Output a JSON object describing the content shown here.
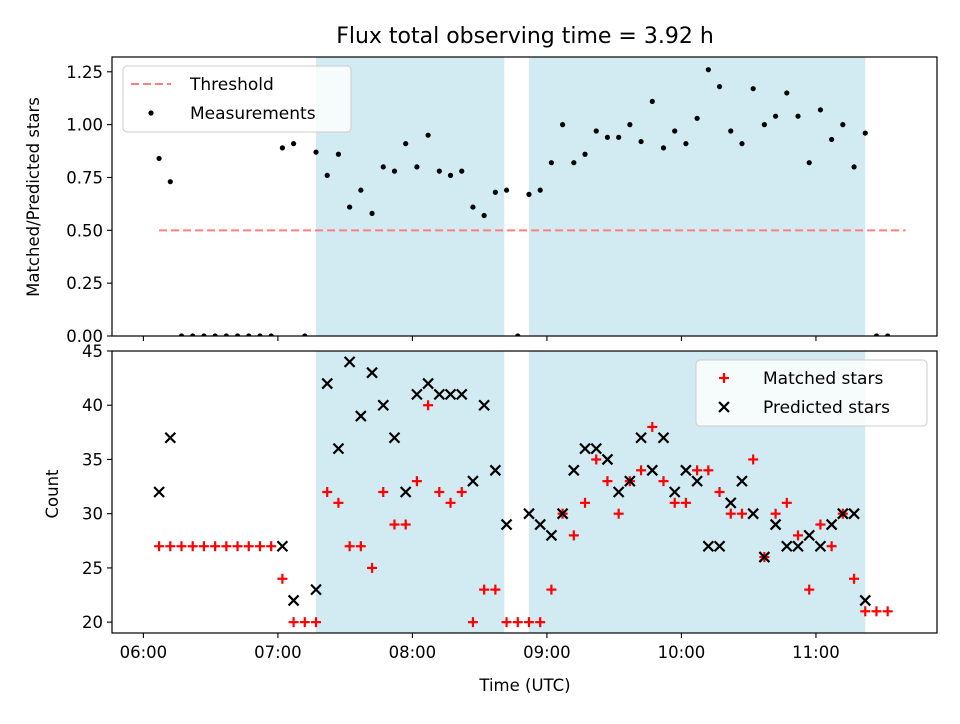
{
  "figure": {
    "title": "Flux total observing time = 3.92 h"
  },
  "chart_data": [
    {
      "type": "scatter",
      "xlabel": "",
      "ylabel": "Matched/Predicted stars",
      "ylim": [
        0,
        1.32
      ],
      "xlim": [
        "05:46",
        "11:54"
      ],
      "yticks": [
        0,
        0.25,
        0.5,
        0.75,
        1.0,
        1.25
      ],
      "ytick_labels": [
        "0.00",
        "0.25",
        "0.50",
        "0.75",
        "1.00",
        "1.25"
      ],
      "shaded_spans": [
        [
          "07:17",
          "08:41"
        ],
        [
          "08:52",
          "11:22"
        ]
      ],
      "shade_color": "#add8e6",
      "legend_position": "top-left",
      "legend": [
        {
          "label": "Threshold",
          "style": "dashed-line",
          "color": "#ff7f7f"
        },
        {
          "label": "Measurements",
          "style": "dot",
          "color": "#000000"
        }
      ],
      "threshold": {
        "value": 0.5,
        "x_range": [
          "06:07",
          "11:40"
        ]
      },
      "series": [
        {
          "name": "Measurements",
          "points": [
            [
              "06:07",
              0.84
            ],
            [
              "06:12",
              0.73
            ],
            [
              "06:17",
              0.0
            ],
            [
              "06:22",
              0.0
            ],
            [
              "06:27",
              0.0
            ],
            [
              "06:32",
              0.0
            ],
            [
              "06:37",
              0.0
            ],
            [
              "06:42",
              0.0
            ],
            [
              "06:47",
              0.0
            ],
            [
              "06:52",
              0.0
            ],
            [
              "06:57",
              0.0
            ],
            [
              "07:02",
              0.89
            ],
            [
              "07:07",
              0.91
            ],
            [
              "07:12",
              0.0
            ],
            [
              "07:17",
              0.87
            ],
            [
              "07:22",
              0.76
            ],
            [
              "07:27",
              0.86
            ],
            [
              "07:32",
              0.61
            ],
            [
              "07:37",
              0.69
            ],
            [
              "07:42",
              0.58
            ],
            [
              "07:47",
              0.8
            ],
            [
              "07:52",
              0.78
            ],
            [
              "07:57",
              0.91
            ],
            [
              "08:02",
              0.8
            ],
            [
              "08:07",
              0.95
            ],
            [
              "08:12",
              0.78
            ],
            [
              "08:17",
              0.76
            ],
            [
              "08:22",
              0.78
            ],
            [
              "08:27",
              0.61
            ],
            [
              "08:32",
              0.57
            ],
            [
              "08:37",
              0.68
            ],
            [
              "08:42",
              0.69
            ],
            [
              "08:47",
              0.0
            ],
            [
              "08:52",
              0.67
            ],
            [
              "08:57",
              0.69
            ],
            [
              "09:02",
              0.82
            ],
            [
              "09:07",
              1.0
            ],
            [
              "09:12",
              0.82
            ],
            [
              "09:17",
              0.86
            ],
            [
              "09:22",
              0.97
            ],
            [
              "09:27",
              0.94
            ],
            [
              "09:32",
              0.94
            ],
            [
              "09:37",
              1.0
            ],
            [
              "09:42",
              0.92
            ],
            [
              "09:47",
              1.11
            ],
            [
              "09:52",
              0.89
            ],
            [
              "09:57",
              0.97
            ],
            [
              "10:02",
              0.91
            ],
            [
              "10:07",
              1.03
            ],
            [
              "10:12",
              1.26
            ],
            [
              "10:17",
              1.18
            ],
            [
              "10:22",
              0.97
            ],
            [
              "10:27",
              0.91
            ],
            [
              "10:32",
              1.17
            ],
            [
              "10:37",
              1.0
            ],
            [
              "10:42",
              1.04
            ],
            [
              "10:47",
              1.15
            ],
            [
              "10:52",
              1.04
            ],
            [
              "10:57",
              0.82
            ],
            [
              "11:02",
              1.07
            ],
            [
              "11:07",
              0.93
            ],
            [
              "11:12",
              1.0
            ],
            [
              "11:17",
              0.8
            ],
            [
              "11:22",
              0.96
            ],
            [
              "11:27",
              0.0
            ],
            [
              "11:32",
              0.0
            ]
          ]
        }
      ]
    },
    {
      "type": "scatter",
      "xlabel": "Time (UTC)",
      "ylabel": "Count",
      "ylim": [
        19,
        45
      ],
      "xlim": [
        "05:46",
        "11:54"
      ],
      "yticks": [
        20,
        25,
        30,
        35,
        40,
        45
      ],
      "ytick_labels": [
        "20",
        "25",
        "30",
        "35",
        "40",
        "45"
      ],
      "xticks": [
        "06:00",
        "07:00",
        "08:00",
        "09:00",
        "10:00",
        "11:00"
      ],
      "xtick_labels": [
        "06:00",
        "07:00",
        "08:00",
        "09:00",
        "10:00",
        "11:00"
      ],
      "shaded_spans": [
        [
          "07:17",
          "08:41"
        ],
        [
          "08:52",
          "11:22"
        ]
      ],
      "shade_color": "#add8e6",
      "legend_position": "top-right",
      "legend": [
        {
          "label": "Matched stars",
          "style": "plus",
          "color": "#ff0000"
        },
        {
          "label": "Predicted stars",
          "style": "x",
          "color": "#000000"
        }
      ],
      "series": [
        {
          "name": "Matched stars",
          "points": [
            [
              "06:07",
              27
            ],
            [
              "06:12",
              27
            ],
            [
              "06:17",
              27
            ],
            [
              "06:22",
              27
            ],
            [
              "06:27",
              27
            ],
            [
              "06:32",
              27
            ],
            [
              "06:37",
              27
            ],
            [
              "06:42",
              27
            ],
            [
              "06:47",
              27
            ],
            [
              "06:52",
              27
            ],
            [
              "06:57",
              27
            ],
            [
              "07:02",
              24
            ],
            [
              "07:07",
              20
            ],
            [
              "07:12",
              20
            ],
            [
              "07:17",
              20
            ],
            [
              "07:22",
              32
            ],
            [
              "07:27",
              31
            ],
            [
              "07:32",
              27
            ],
            [
              "07:37",
              27
            ],
            [
              "07:42",
              25
            ],
            [
              "07:47",
              32
            ],
            [
              "07:52",
              29
            ],
            [
              "07:57",
              29
            ],
            [
              "08:02",
              33
            ],
            [
              "08:07",
              40
            ],
            [
              "08:12",
              32
            ],
            [
              "08:17",
              31
            ],
            [
              "08:22",
              32
            ],
            [
              "08:27",
              20
            ],
            [
              "08:32",
              23
            ],
            [
              "08:37",
              23
            ],
            [
              "08:42",
              20
            ],
            [
              "08:47",
              20
            ],
            [
              "08:52",
              20
            ],
            [
              "08:57",
              20
            ],
            [
              "09:02",
              23
            ],
            [
              "09:07",
              30
            ],
            [
              "09:12",
              28
            ],
            [
              "09:17",
              31
            ],
            [
              "09:22",
              35
            ],
            [
              "09:27",
              33
            ],
            [
              "09:32",
              30
            ],
            [
              "09:37",
              33
            ],
            [
              "09:42",
              34
            ],
            [
              "09:47",
              38
            ],
            [
              "09:52",
              33
            ],
            [
              "09:57",
              31
            ],
            [
              "10:02",
              31
            ],
            [
              "10:07",
              34
            ],
            [
              "10:12",
              34
            ],
            [
              "10:17",
              32
            ],
            [
              "10:22",
              30
            ],
            [
              "10:27",
              30
            ],
            [
              "10:32",
              35
            ],
            [
              "10:37",
              26
            ],
            [
              "10:42",
              30
            ],
            [
              "10:47",
              31
            ],
            [
              "10:52",
              28
            ],
            [
              "10:57",
              23
            ],
            [
              "11:02",
              29
            ],
            [
              "11:07",
              27
            ],
            [
              "11:12",
              30
            ],
            [
              "11:17",
              24
            ],
            [
              "11:22",
              21
            ],
            [
              "11:27",
              21
            ],
            [
              "11:32",
              21
            ]
          ]
        },
        {
          "name": "Predicted stars",
          "points": [
            [
              "06:07",
              32
            ],
            [
              "06:12",
              37
            ],
            [
              "07:02",
              27
            ],
            [
              "07:07",
              22
            ],
            [
              "07:17",
              23
            ],
            [
              "07:22",
              42
            ],
            [
              "07:27",
              36
            ],
            [
              "07:32",
              44
            ],
            [
              "07:37",
              39
            ],
            [
              "07:42",
              43
            ],
            [
              "07:47",
              40
            ],
            [
              "07:52",
              37
            ],
            [
              "07:57",
              32
            ],
            [
              "08:02",
              41
            ],
            [
              "08:07",
              42
            ],
            [
              "08:12",
              41
            ],
            [
              "08:17",
              41
            ],
            [
              "08:22",
              41
            ],
            [
              "08:27",
              33
            ],
            [
              "08:32",
              40
            ],
            [
              "08:37",
              34
            ],
            [
              "08:42",
              29
            ],
            [
              "08:52",
              30
            ],
            [
              "08:57",
              29
            ],
            [
              "09:02",
              28
            ],
            [
              "09:07",
              30
            ],
            [
              "09:12",
              34
            ],
            [
              "09:17",
              36
            ],
            [
              "09:22",
              36
            ],
            [
              "09:27",
              35
            ],
            [
              "09:32",
              32
            ],
            [
              "09:37",
              33
            ],
            [
              "09:42",
              37
            ],
            [
              "09:47",
              34
            ],
            [
              "09:52",
              37
            ],
            [
              "09:57",
              32
            ],
            [
              "10:02",
              34
            ],
            [
              "10:07",
              33
            ],
            [
              "10:12",
              27
            ],
            [
              "10:17",
              27
            ],
            [
              "10:22",
              31
            ],
            [
              "10:27",
              33
            ],
            [
              "10:32",
              30
            ],
            [
              "10:37",
              26
            ],
            [
              "10:42",
              29
            ],
            [
              "10:47",
              27
            ],
            [
              "10:52",
              27
            ],
            [
              "10:57",
              28
            ],
            [
              "11:02",
              27
            ],
            [
              "11:07",
              29
            ],
            [
              "11:12",
              30
            ],
            [
              "11:17",
              30
            ],
            [
              "11:22",
              22
            ]
          ]
        }
      ]
    }
  ]
}
